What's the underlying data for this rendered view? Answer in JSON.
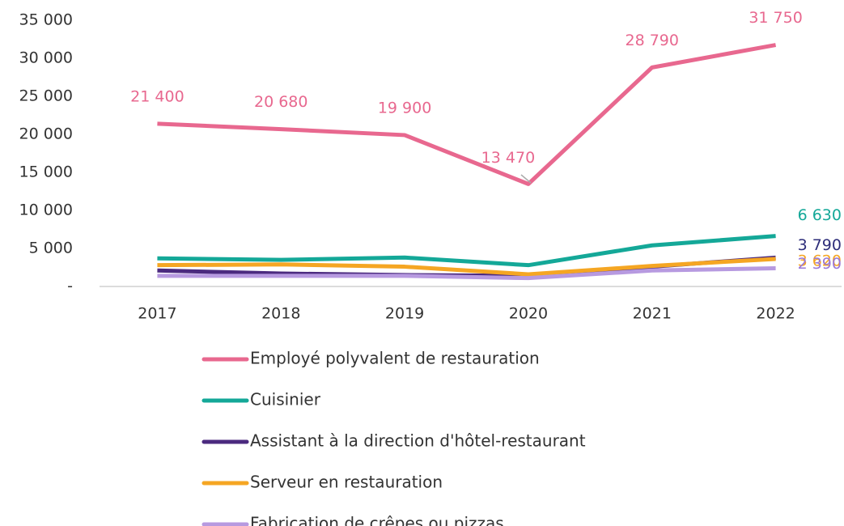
{
  "chart_data": {
    "type": "line",
    "categories": [
      "2017",
      "2018",
      "2019",
      "2020",
      "2021",
      "2022"
    ],
    "series": [
      {
        "name": "Employé polyvalent de restauration",
        "color": "#e8688f",
        "values": [
          21400,
          20680,
          19900,
          13470,
          28790,
          31750
        ],
        "value_labels": [
          "21 400",
          "20 680",
          "19 900",
          "13 470",
          "28 790",
          "31 750"
        ]
      },
      {
        "name": "Cuisinier",
        "color": "#14a898",
        "values": [
          3700,
          3500,
          3800,
          2800,
          5400,
          6630
        ],
        "value_labels": [
          null,
          null,
          null,
          null,
          null,
          "6 630"
        ]
      },
      {
        "name": "Assistant à la direction d'hôtel-restaurant",
        "color": "#4b2a7f",
        "label_color": "#2e2e7a",
        "values": [
          2100,
          1700,
          1500,
          1400,
          2600,
          3790
        ],
        "value_labels": [
          null,
          null,
          null,
          null,
          null,
          "3 790"
        ]
      },
      {
        "name": "Serveur en restauration",
        "color": "#f5a623",
        "values": [
          2800,
          2900,
          2600,
          1600,
          2700,
          3620
        ],
        "value_labels": [
          null,
          null,
          null,
          null,
          null,
          "3 620"
        ]
      },
      {
        "name": "Fabrication de crêpes ou pizzas",
        "color": "#b79ae0",
        "label_color": "#9a78d6",
        "values": [
          1400,
          1400,
          1400,
          1100,
          2100,
          2390
        ],
        "value_labels": [
          null,
          null,
          null,
          null,
          null,
          "2 390"
        ]
      }
    ],
    "ylim": [
      0,
      35000
    ],
    "yticks": [
      {
        "value": 0,
        "label": "-"
      },
      {
        "value": 5000,
        "label": "5 000"
      },
      {
        "value": 10000,
        "label": "10 000"
      },
      {
        "value": 15000,
        "label": "15 000"
      },
      {
        "value": 20000,
        "label": "20 000"
      },
      {
        "value": 25000,
        "label": "25 000"
      },
      {
        "value": 30000,
        "label": "30 000"
      },
      {
        "value": 35000,
        "label": "35 000"
      }
    ],
    "grid": false,
    "legend": "bottom"
  }
}
